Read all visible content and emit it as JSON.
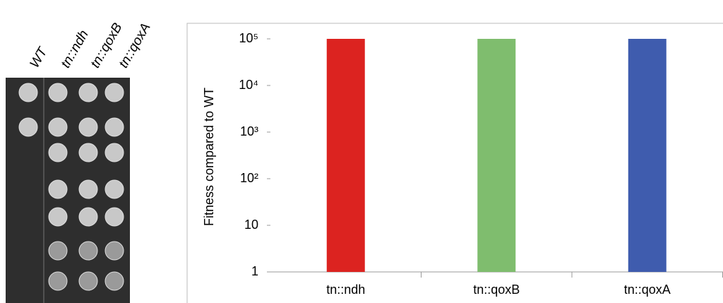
{
  "image": {
    "column_labels": [
      "WT",
      "tn::ndh",
      "tn::qoxB",
      "tn::qoxA"
    ]
  },
  "chart_data": {
    "type": "bar",
    "y_label": "Fitness compared to WT",
    "categories": [
      "tn::ndh",
      "tn::qoxB",
      "tn::qoxA"
    ],
    "values": [
      100000,
      100000,
      100000
    ],
    "colors": [
      "#dc2320",
      "#7fbd6e",
      "#3f5cae"
    ],
    "log_y": true,
    "ylim": [
      1,
      100000
    ],
    "yticks": [
      1,
      10,
      {
        "value": 100,
        "label": "10²"
      },
      {
        "value": 1000,
        "label": "10³"
      },
      {
        "value": 10000,
        "label": "10⁴"
      },
      {
        "value": 100000,
        "label": "10⁵"
      }
    ]
  }
}
